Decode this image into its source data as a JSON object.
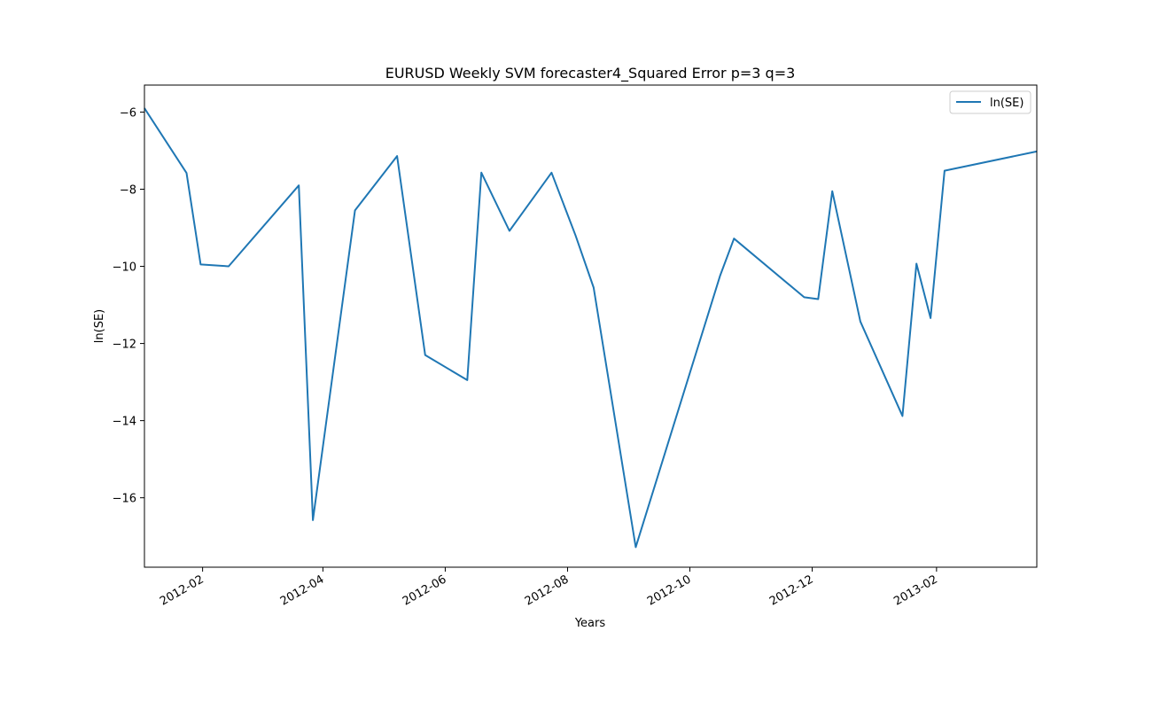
{
  "chart_data": {
    "type": "line",
    "title": "EURUSD Weekly SVM forecaster4_Squared Error p=3 q=3",
    "xlabel": "Years",
    "ylabel": "ln(SE)",
    "xlim": [
      "2012-01-03",
      "2013-03-23"
    ],
    "ylim": [
      -17.8,
      -5.3
    ],
    "x_ticks": [
      "2012-02",
      "2012-04",
      "2012-06",
      "2012-08",
      "2012-10",
      "2012-12",
      "2013-02"
    ],
    "y_ticks": [
      -6,
      -8,
      -10,
      -12,
      -14,
      -16
    ],
    "y_tick_labels": [
      "−6",
      "−8",
      "−10",
      "−12",
      "−14",
      "−16"
    ],
    "grid": false,
    "legend": {
      "position": "top-right"
    },
    "series": [
      {
        "name": "ln(SE)",
        "color": "#1f77b4",
        "x": [
          "2012-01-03",
          "2012-01-24",
          "2012-01-31",
          "2012-02-14",
          "2012-03-20",
          "2012-03-27",
          "2012-04-17",
          "2012-05-08",
          "2012-05-22",
          "2012-06-12",
          "2012-06-19",
          "2012-07-03",
          "2012-07-24",
          "2012-08-05",
          "2012-08-14",
          "2012-09-04",
          "2012-10-16",
          "2012-10-23",
          "2012-11-27",
          "2012-12-04",
          "2012-12-11",
          "2012-12-25",
          "2013-01-15",
          "2013-01-22",
          "2013-01-29",
          "2013-02-05",
          "2013-03-23"
        ],
        "y": [
          -5.9,
          -7.58,
          -9.95,
          -10.0,
          -7.9,
          -16.58,
          -8.55,
          -7.14,
          -12.3,
          -12.95,
          -7.57,
          -9.08,
          -7.57,
          -9.2,
          -10.55,
          -17.28,
          -10.25,
          -9.28,
          -10.8,
          -10.85,
          -8.05,
          -11.43,
          -13.88,
          -9.93,
          -11.34,
          -7.52,
          -7.02
        ]
      }
    ]
  }
}
